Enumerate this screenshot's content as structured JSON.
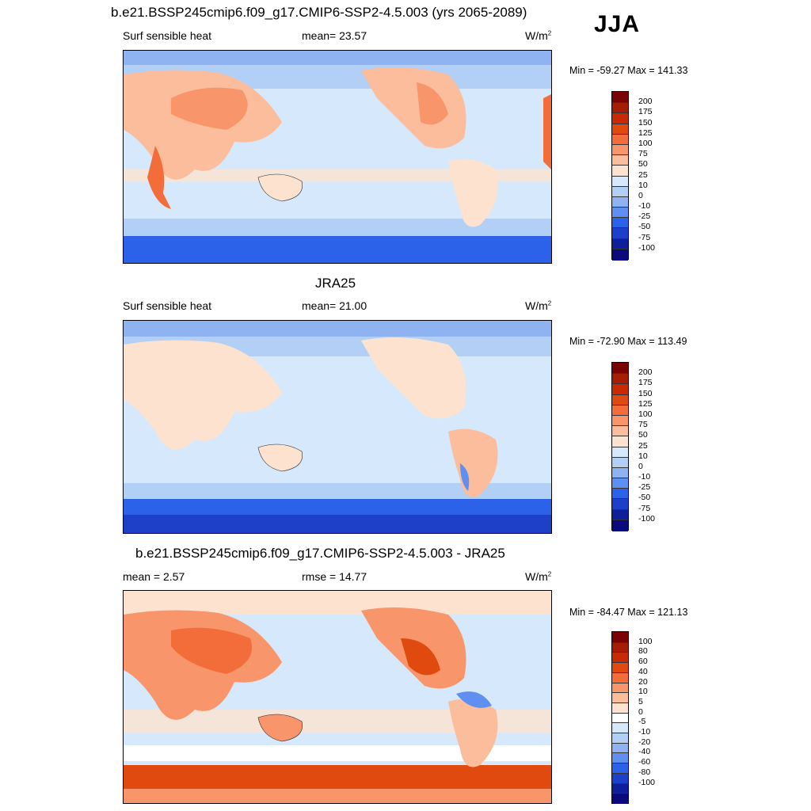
{
  "season": "JJA",
  "units": "W/m",
  "units_sup": "2",
  "panels": [
    {
      "title": "b.e21.BSSP245cmip6.f09_g17.CMIP6-SSP2-4.5.003 (yrs 2065-2089)",
      "left_label": "Surf sensible heat",
      "center_label": "mean=  23.57",
      "minmax": "Min = -59.27 Max = 141.33",
      "colorbar_labels": [
        "200",
        "175",
        "150",
        "125",
        "100",
        "75",
        "50",
        "25",
        "10",
        "0",
        "-10",
        "-25",
        "-50",
        "-75",
        "-100"
      ]
    },
    {
      "title": "JRA25",
      "left_label": "Surf sensible heat",
      "center_label": "mean=  21.00",
      "minmax": "Min = -72.90 Max = 113.49",
      "colorbar_labels": [
        "200",
        "175",
        "150",
        "125",
        "100",
        "75",
        "50",
        "25",
        "10",
        "0",
        "-10",
        "-25",
        "-50",
        "-75",
        "-100"
      ]
    },
    {
      "title": "b.e21.BSSP245cmip6.f09_g17.CMIP6-SSP2-4.5.003 - JRA25",
      "left_label": "mean =   2.57",
      "center_label": "rmse =  14.77",
      "minmax": "Min = -84.47 Max = 121.13",
      "colorbar_labels": [
        "100",
        "80",
        "60",
        "40",
        "20",
        "10",
        "5",
        "0",
        "-5",
        "-10",
        "-20",
        "-40",
        "-60",
        "-80",
        "-100"
      ]
    }
  ],
  "colors": {
    "abs_scale": [
      "#7a0403",
      "#a51d02",
      "#c62b02",
      "#e04a0e",
      "#f26d3a",
      "#f8956a",
      "#fbbd9c",
      "#fde3cf",
      "#d6e8fb",
      "#b2cff5",
      "#8fb3f0",
      "#5f8ff0",
      "#2c62ea",
      "#1e40c8",
      "#0d1f9a",
      "#0a0a7a"
    ],
    "diff_scale": [
      "#7a0403",
      "#a51d02",
      "#c62b02",
      "#e04a0e",
      "#f26d3a",
      "#f8956a",
      "#fbbd9c",
      "#fde3cf",
      "#ffffff",
      "#d6e8fb",
      "#b2cff5",
      "#8fb3f0",
      "#5f8ff0",
      "#2c62ea",
      "#1e40c8",
      "#0d1f9a",
      "#0a0a7a"
    ]
  }
}
